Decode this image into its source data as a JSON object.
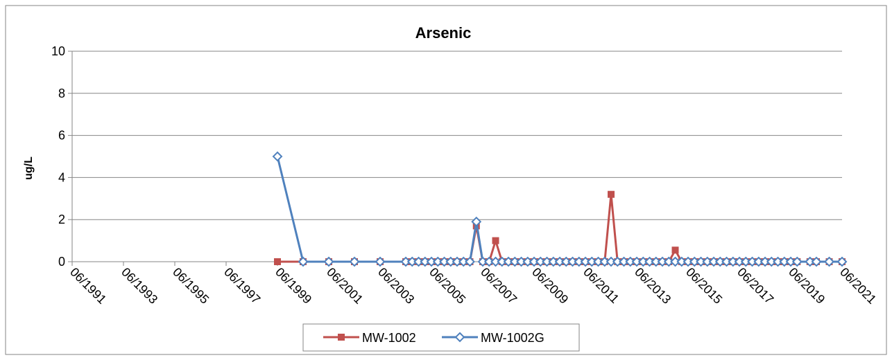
{
  "chart_data": {
    "type": "line",
    "title": "Arsenic",
    "ylabel": "ug/L",
    "xlabel": "",
    "ylim": [
      0,
      10
    ],
    "yticks": [
      0,
      2,
      4,
      6,
      8,
      10
    ],
    "xlim": [
      "1991-06",
      "2021-06"
    ],
    "xtick_labels": [
      "06/1991",
      "06/1993",
      "06/1995",
      "06/1997",
      "06/1999",
      "06/2001",
      "06/2003",
      "06/2005",
      "06/2007",
      "06/2009",
      "06/2011",
      "06/2013",
      "06/2015",
      "06/2017",
      "06/2019",
      "06/2021"
    ],
    "grid": true,
    "legend_position": "bottom",
    "series": [
      {
        "name": "MW-1002",
        "color": "#C0504D",
        "marker": "square-filled",
        "points": [
          [
            "1999-06",
            0
          ],
          [
            "2000-06",
            0
          ],
          [
            "2001-06",
            0
          ],
          [
            "2002-06",
            0
          ],
          [
            "2003-06",
            0
          ],
          [
            "2004-06",
            0
          ],
          [
            "2004-09",
            0
          ],
          [
            "2004-12",
            0
          ],
          [
            "2005-03",
            0
          ],
          [
            "2005-06",
            0
          ],
          [
            "2005-09",
            0
          ],
          [
            "2005-12",
            0
          ],
          [
            "2006-03",
            0
          ],
          [
            "2006-06",
            0
          ],
          [
            "2006-09",
            0
          ],
          [
            "2006-12",
            0
          ],
          [
            "2007-03",
            1.7
          ],
          [
            "2007-06",
            0
          ],
          [
            "2007-09",
            0
          ],
          [
            "2007-12",
            1.0
          ],
          [
            "2008-03",
            0
          ],
          [
            "2008-06",
            0
          ],
          [
            "2008-09",
            0
          ],
          [
            "2008-12",
            0
          ],
          [
            "2009-03",
            0
          ],
          [
            "2009-06",
            0
          ],
          [
            "2009-09",
            0
          ],
          [
            "2009-12",
            0
          ],
          [
            "2010-03",
            0
          ],
          [
            "2010-06",
            0
          ],
          [
            "2010-09",
            0
          ],
          [
            "2010-12",
            0
          ],
          [
            "2011-03",
            0
          ],
          [
            "2011-06",
            0
          ],
          [
            "2011-09",
            0
          ],
          [
            "2011-12",
            0
          ],
          [
            "2012-03",
            0
          ],
          [
            "2012-06",
            3.2
          ],
          [
            "2012-09",
            0
          ],
          [
            "2012-12",
            0
          ],
          [
            "2013-03",
            0
          ],
          [
            "2013-06",
            0
          ],
          [
            "2013-09",
            0
          ],
          [
            "2013-12",
            0
          ],
          [
            "2014-03",
            0
          ],
          [
            "2014-06",
            0
          ],
          [
            "2014-09",
            0
          ],
          [
            "2014-12",
            0.55
          ],
          [
            "2015-03",
            0
          ],
          [
            "2015-06",
            0
          ],
          [
            "2015-09",
            0
          ],
          [
            "2015-12",
            0
          ],
          [
            "2016-03",
            0
          ],
          [
            "2016-06",
            0
          ],
          [
            "2016-09",
            0
          ],
          [
            "2016-12",
            0
          ],
          [
            "2017-03",
            0
          ],
          [
            "2017-06",
            0
          ],
          [
            "2017-09",
            0
          ],
          [
            "2017-12",
            0
          ],
          [
            "2018-03",
            0
          ],
          [
            "2018-06",
            0
          ],
          [
            "2018-09",
            0
          ],
          [
            "2018-12",
            0
          ],
          [
            "2019-03",
            0
          ],
          [
            "2019-06",
            0
          ],
          [
            "2019-09",
            0
          ],
          [
            "2020-03",
            0
          ],
          [
            "2020-06",
            0
          ],
          [
            "2020-12",
            0
          ],
          [
            "2021-06",
            0
          ]
        ]
      },
      {
        "name": "MW-1002G",
        "color": "#4F81BD",
        "marker": "diamond-open",
        "points": [
          [
            "1999-06",
            5.0
          ],
          [
            "2000-06",
            0
          ],
          [
            "2001-06",
            0
          ],
          [
            "2002-06",
            0
          ],
          [
            "2003-06",
            0
          ],
          [
            "2004-06",
            0
          ],
          [
            "2004-09",
            0
          ],
          [
            "2004-12",
            0
          ],
          [
            "2005-03",
            0
          ],
          [
            "2005-06",
            0
          ],
          [
            "2005-09",
            0
          ],
          [
            "2005-12",
            0
          ],
          [
            "2006-03",
            0
          ],
          [
            "2006-06",
            0
          ],
          [
            "2006-09",
            0
          ],
          [
            "2006-12",
            0
          ],
          [
            "2007-03",
            1.9
          ],
          [
            "2007-06",
            0
          ],
          [
            "2007-09",
            0
          ],
          [
            "2007-12",
            0
          ],
          [
            "2008-03",
            0
          ],
          [
            "2008-06",
            0
          ],
          [
            "2008-09",
            0
          ],
          [
            "2008-12",
            0
          ],
          [
            "2009-03",
            0
          ],
          [
            "2009-06",
            0
          ],
          [
            "2009-09",
            0
          ],
          [
            "2009-12",
            0
          ],
          [
            "2010-03",
            0
          ],
          [
            "2010-06",
            0
          ],
          [
            "2010-09",
            0
          ],
          [
            "2010-12",
            0
          ],
          [
            "2011-03",
            0
          ],
          [
            "2011-06",
            0
          ],
          [
            "2011-09",
            0
          ],
          [
            "2011-12",
            0
          ],
          [
            "2012-03",
            0
          ],
          [
            "2012-06",
            0
          ],
          [
            "2012-09",
            0
          ],
          [
            "2012-12",
            0
          ],
          [
            "2013-03",
            0
          ],
          [
            "2013-06",
            0
          ],
          [
            "2013-09",
            0
          ],
          [
            "2013-12",
            0
          ],
          [
            "2014-03",
            0
          ],
          [
            "2014-06",
            0
          ],
          [
            "2014-09",
            0
          ],
          [
            "2014-12",
            0
          ],
          [
            "2015-03",
            0
          ],
          [
            "2015-06",
            0
          ],
          [
            "2015-09",
            0
          ],
          [
            "2015-12",
            0
          ],
          [
            "2016-03",
            0
          ],
          [
            "2016-06",
            0
          ],
          [
            "2016-09",
            0
          ],
          [
            "2016-12",
            0
          ],
          [
            "2017-03",
            0
          ],
          [
            "2017-06",
            0
          ],
          [
            "2017-09",
            0
          ],
          [
            "2017-12",
            0
          ],
          [
            "2018-03",
            0
          ],
          [
            "2018-06",
            0
          ],
          [
            "2018-09",
            0
          ],
          [
            "2018-12",
            0
          ],
          [
            "2019-03",
            0
          ],
          [
            "2019-06",
            0
          ],
          [
            "2019-09",
            0
          ],
          [
            "2020-03",
            0
          ],
          [
            "2020-06",
            0
          ],
          [
            "2020-12",
            0
          ],
          [
            "2021-06",
            0
          ]
        ]
      }
    ]
  }
}
